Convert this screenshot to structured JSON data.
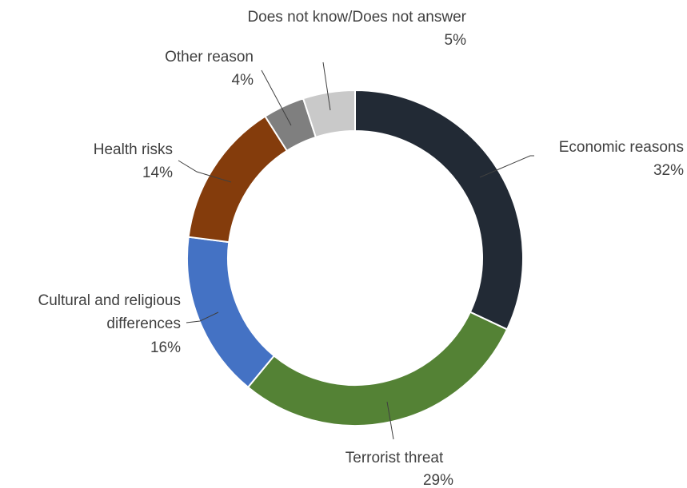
{
  "chart_data": {
    "type": "pie",
    "variant": "donut",
    "title": "",
    "legend": "none",
    "slices": [
      {
        "label": "Economic reasons",
        "value": 32,
        "value_label": "32%",
        "color": "#222a35"
      },
      {
        "label": "Terrorist threat",
        "value": 29,
        "value_label": "29%",
        "color": "#548235"
      },
      {
        "label": "Cultural and religious differences",
        "label_lines": [
          "Cultural and religious",
          "differences"
        ],
        "value": 16,
        "value_label": "16%",
        "color": "#4472c4"
      },
      {
        "label": "Health risks",
        "value": 14,
        "value_label": "14%",
        "color": "#843c0c"
      },
      {
        "label": "Other reason",
        "value": 4,
        "value_label": "4%",
        "color": "#7f7f7f"
      },
      {
        "label": "Does not know/Does not answer",
        "value": 5,
        "value_label": "5%",
        "color": "#c9c9c9"
      }
    ]
  }
}
